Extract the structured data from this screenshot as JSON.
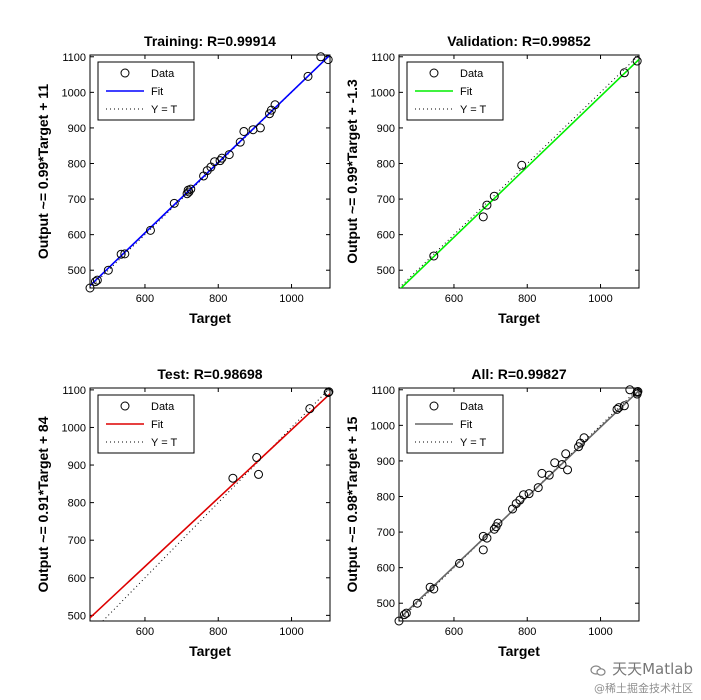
{
  "chart_data": [
    {
      "type": "scatter",
      "title": "Training: R=0.99914",
      "xlabel": "Target",
      "ylabel": "Output ~= 0.99*Target + 11",
      "xlim": [
        450,
        1105
      ],
      "ylim": [
        450,
        1105
      ],
      "xticks": [
        600,
        800,
        1000
      ],
      "yticks": [
        500,
        600,
        700,
        800,
        900,
        1000,
        1100
      ],
      "grid": false,
      "legend_placement": "top-left",
      "legend": [
        "Data",
        "Fit",
        "Y = T"
      ],
      "fit_color": "#0000ff",
      "fit": {
        "slope": 0.99,
        "intercept": 11
      },
      "points": [
        [
          450,
          450
        ],
        [
          465,
          468
        ],
        [
          470,
          472
        ],
        [
          500,
          500
        ],
        [
          535,
          545
        ],
        [
          545,
          546
        ],
        [
          615,
          612
        ],
        [
          680,
          688
        ],
        [
          715,
          715
        ],
        [
          718,
          725
        ],
        [
          720,
          720
        ],
        [
          725,
          728
        ],
        [
          760,
          765
        ],
        [
          770,
          780
        ],
        [
          780,
          790
        ],
        [
          790,
          805
        ],
        [
          805,
          808
        ],
        [
          810,
          815
        ],
        [
          830,
          825
        ],
        [
          860,
          860
        ],
        [
          870,
          890
        ],
        [
          895,
          895
        ],
        [
          915,
          900
        ],
        [
          940,
          940
        ],
        [
          945,
          950
        ],
        [
          955,
          965
        ],
        [
          1045,
          1045
        ],
        [
          1080,
          1100
        ],
        [
          1100,
          1092
        ]
      ]
    },
    {
      "type": "scatter",
      "title": "Validation: R=0.99852",
      "xlabel": "Target",
      "ylabel": "Output ~= 0.99*Target + -1.3",
      "xlim": [
        450,
        1105
      ],
      "ylim": [
        450,
        1105
      ],
      "xticks": [
        600,
        800,
        1000
      ],
      "yticks": [
        500,
        600,
        700,
        800,
        900,
        1000,
        1100
      ],
      "grid": false,
      "legend_placement": "top-left",
      "legend": [
        "Data",
        "Fit",
        "Y = T"
      ],
      "fit_color": "#00ee00",
      "fit": {
        "slope": 0.99,
        "intercept": -1.3
      },
      "points": [
        [
          545,
          540
        ],
        [
          680,
          650
        ],
        [
          690,
          683
        ],
        [
          710,
          708
        ],
        [
          785,
          795
        ],
        [
          1065,
          1055
        ],
        [
          1100,
          1088
        ]
      ]
    },
    {
      "type": "scatter",
      "title": "Test: R=0.98698",
      "xlabel": "Target",
      "ylabel": "Output ~= 0.91*Target + 84",
      "xlim": [
        450,
        1105
      ],
      "ylim": [
        485,
        1105
      ],
      "xticks": [
        600,
        800,
        1000
      ],
      "yticks": [
        500,
        600,
        700,
        800,
        900,
        1000,
        1100
      ],
      "grid": false,
      "legend_placement": "top-left",
      "legend": [
        "Data",
        "Fit",
        "Y = T"
      ],
      "fit_color": "#dd0000",
      "fit": {
        "slope": 0.91,
        "intercept": 84
      },
      "points": [
        [
          840,
          865
        ],
        [
          905,
          920
        ],
        [
          910,
          875
        ],
        [
          1050,
          1050
        ],
        [
          1100,
          1093
        ],
        [
          1102,
          1095
        ]
      ]
    },
    {
      "type": "scatter",
      "title": "All: R=0.99827",
      "xlabel": "Target",
      "ylabel": "Output ~= 0.98*Target + 15",
      "xlim": [
        450,
        1105
      ],
      "ylim": [
        450,
        1105
      ],
      "xticks": [
        600,
        800,
        1000
      ],
      "yticks": [
        500,
        600,
        700,
        800,
        900,
        1000,
        1100
      ],
      "grid": false,
      "legend_placement": "top-left",
      "legend": [
        "Data",
        "Fit",
        "Y = T"
      ],
      "fit_color": "#666666",
      "fit": {
        "slope": 0.98,
        "intercept": 15
      },
      "points": [
        [
          450,
          450
        ],
        [
          465,
          468
        ],
        [
          470,
          472
        ],
        [
          500,
          500
        ],
        [
          535,
          545
        ],
        [
          545,
          540
        ],
        [
          615,
          612
        ],
        [
          680,
          650
        ],
        [
          680,
          688
        ],
        [
          690,
          683
        ],
        [
          710,
          708
        ],
        [
          715,
          715
        ],
        [
          720,
          725
        ],
        [
          760,
          765
        ],
        [
          770,
          780
        ],
        [
          780,
          790
        ],
        [
          790,
          805
        ],
        [
          805,
          808
        ],
        [
          830,
          825
        ],
        [
          840,
          865
        ],
        [
          860,
          860
        ],
        [
          875,
          895
        ],
        [
          895,
          890
        ],
        [
          905,
          920
        ],
        [
          910,
          875
        ],
        [
          940,
          940
        ],
        [
          945,
          950
        ],
        [
          955,
          965
        ],
        [
          1045,
          1045
        ],
        [
          1050,
          1050
        ],
        [
          1065,
          1055
        ],
        [
          1080,
          1100
        ],
        [
          1100,
          1088
        ],
        [
          1100,
          1093
        ],
        [
          1102,
          1095
        ]
      ]
    }
  ],
  "watermark": {
    "line1": "天天Matlab",
    "line2": "@稀土掘金技术社区"
  }
}
